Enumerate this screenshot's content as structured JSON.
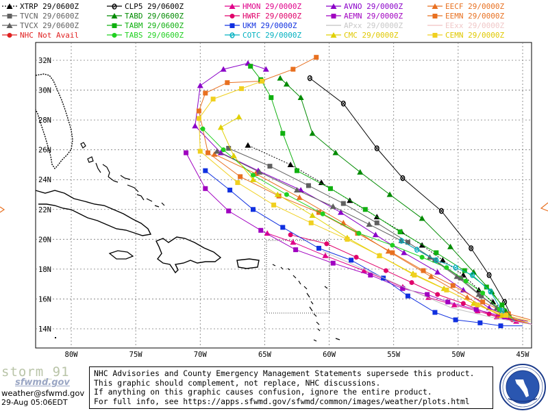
{
  "legend": [
    {
      "label": "XTRP  29/0600Z",
      "color": "#000000",
      "marker": "triangle",
      "dash": "dotted"
    },
    {
      "label": "CLP5  29/0600Z",
      "color": "#000000",
      "marker": "circle-zero",
      "dash": "solid"
    },
    {
      "label": "HMON  29/0000Z",
      "color": "#e0008a",
      "marker": "triangle",
      "dash": "solid"
    },
    {
      "label": "AVNO  29/0000Z",
      "color": "#8a00c8",
      "marker": "triangle",
      "dash": "solid"
    },
    {
      "label": "EECF  29/0000Z",
      "color": "#e87020",
      "marker": "triangle",
      "dash": "solid"
    },
    {
      "label": "TVCN  29/0600Z",
      "color": "#606060",
      "marker": "square",
      "dash": "solid"
    },
    {
      "label": "TABD  29/0600Z",
      "color": "#008a00",
      "marker": "triangle",
      "dash": "solid"
    },
    {
      "label": "HWRF  29/0000Z",
      "color": "#e0006a",
      "marker": "circle",
      "dash": "solid"
    },
    {
      "label": "AEMN  29/0000Z",
      "color": "#a000c0",
      "marker": "square",
      "dash": "solid"
    },
    {
      "label": "EEMN  29/0000Z",
      "color": "#e87020",
      "marker": "square",
      "dash": "solid"
    },
    {
      "label": "TVCX  29/0600Z",
      "color": "#606060",
      "marker": "triangle",
      "dash": "solid"
    },
    {
      "label": "TABM  29/0600Z",
      "color": "#10b010",
      "marker": "square",
      "dash": "solid"
    },
    {
      "label": "UKM   29/0000Z",
      "color": "#1030e0",
      "marker": "square",
      "dash": "solid"
    },
    {
      "label": "APxx  29/0000Z",
      "color": "#c0c0c0",
      "marker": "none",
      "dash": "solid"
    },
    {
      "label": "EExx  29/0000Z",
      "color": "#f0c0c0",
      "marker": "none",
      "dash": "solid"
    },
    {
      "label": "NHC Not Avail",
      "color": "#e02020",
      "marker": "circle",
      "dash": "solid"
    },
    {
      "label": "TABS  29/0600Z",
      "color": "#20d020",
      "marker": "circle",
      "dash": "solid"
    },
    {
      "label": "COTC  29/0000Z",
      "color": "#00b0c0",
      "marker": "circle-zero",
      "dash": "solid"
    },
    {
      "label": "CMC   29/0000Z",
      "color": "#e0d000",
      "marker": "triangle",
      "dash": "solid"
    },
    {
      "label": "CEMN  29/0000Z",
      "color": "#f0d020",
      "marker": "square",
      "dash": "solid"
    }
  ],
  "axes": {
    "lat_labels": [
      "32N",
      "30N",
      "28N",
      "26N",
      "24N",
      "22N",
      "20N",
      "18N",
      "16N",
      "14N"
    ],
    "lon_labels": [
      "80W",
      "75W",
      "70W",
      "65W",
      "60W",
      "55W",
      "50W",
      "45W"
    ]
  },
  "footer": {
    "storm": "storm_91",
    "site": "sfwmd.gov",
    "email": "weather@sfwmd.gov",
    "timestamp": "29-Aug 05:06EDT",
    "disclaimer": [
      "NHC Advisories and County Emergency Management Statements supersede this product.",
      "This graphic should complement, not replace, NHC discussions.",
      "If anything on this graphic causes confusion, ignore the entire product.",
      "For full info, see  https://apps.sfwmd.gov/sfwmd/common/images/weather/plots.html"
    ]
  },
  "colors": {
    "frame": "#000000",
    "grid": "#888888",
    "land": "#000000"
  }
}
